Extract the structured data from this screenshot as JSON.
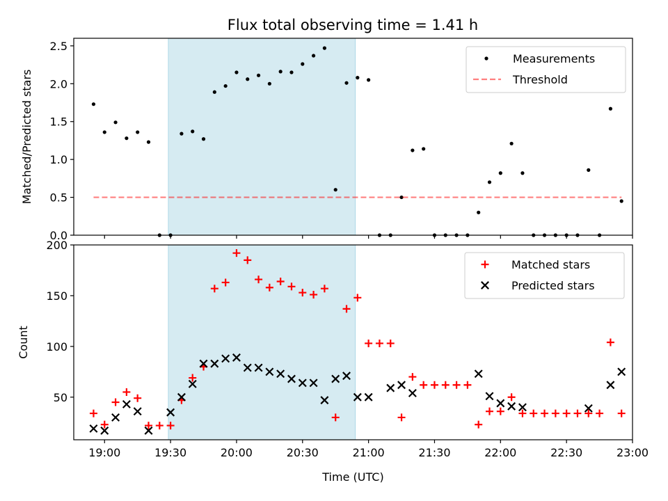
{
  "title": "Flux total observing time = 1.41 h",
  "colors": {
    "shade": "#add8e6",
    "threshold": "#ff0000",
    "matched": "#ff0000",
    "predicted": "#000000",
    "measurements": "#000000"
  },
  "chart_data": [
    {
      "type": "scatter",
      "panel": "top",
      "ylabel": "Matched/Predicted stars",
      "xlim": [
        "18:46",
        "23:00"
      ],
      "ylim": [
        0,
        2.6
      ],
      "yticks": [
        0.0,
        0.5,
        1.0,
        1.5,
        2.0,
        2.5
      ],
      "ytick_labels": [
        "0.0",
        "0.5",
        "1.0",
        "1.5",
        "2.0",
        "2.5"
      ],
      "grid": false,
      "shaded_span": {
        "start": "19:29",
        "end": "20:54"
      },
      "legend": {
        "position": "top-right",
        "entries": [
          "Measurements",
          "Threshold"
        ]
      },
      "series": [
        {
          "name": "Measurements",
          "marker": "dot",
          "x": [
            "18:55",
            "19:00",
            "19:05",
            "19:10",
            "19:15",
            "19:20",
            "19:25",
            "19:30",
            "19:35",
            "19:40",
            "19:45",
            "19:50",
            "19:55",
            "20:00",
            "20:05",
            "20:10",
            "20:15",
            "20:20",
            "20:25",
            "20:30",
            "20:35",
            "20:40",
            "20:45",
            "20:50",
            "20:55",
            "21:00",
            "21:05",
            "21:10",
            "21:15",
            "21:20",
            "21:25",
            "21:30",
            "21:35",
            "21:40",
            "21:45",
            "21:50",
            "21:55",
            "22:00",
            "22:05",
            "22:10",
            "22:15",
            "22:20",
            "22:25",
            "22:30",
            "22:35",
            "22:40",
            "22:45",
            "22:50",
            "22:55"
          ],
          "y": [
            1.73,
            1.36,
            1.49,
            1.28,
            1.36,
            1.23,
            0,
            0,
            1.34,
            1.37,
            1.27,
            1.89,
            1.97,
            2.15,
            2.06,
            2.11,
            2.0,
            2.16,
            2.15,
            2.26,
            2.37,
            2.47,
            0.6,
            2.01,
            2.08,
            2.05,
            0,
            0,
            0.5,
            1.12,
            1.14,
            0,
            0,
            0,
            0,
            0.3,
            0.7,
            0.82,
            1.21,
            0.82,
            0,
            0,
            0,
            0,
            0,
            0.86,
            0,
            1.67,
            0.45
          ]
        },
        {
          "name": "Threshold",
          "style": "dashed",
          "x": [
            "18:55",
            "22:55"
          ],
          "y": [
            0.5,
            0.5
          ]
        }
      ]
    },
    {
      "type": "scatter",
      "panel": "bottom",
      "xlabel": "Time (UTC)",
      "ylabel": "Count",
      "xlim": [
        "18:46",
        "23:00"
      ],
      "ylim": [
        8,
        200
      ],
      "yticks": [
        50,
        100,
        150,
        200
      ],
      "ytick_labels": [
        "50",
        "100",
        "150",
        "200"
      ],
      "xticks": [
        "19:00",
        "19:30",
        "20:00",
        "20:30",
        "21:00",
        "21:30",
        "22:00",
        "22:30",
        "23:00"
      ],
      "grid": false,
      "shaded_span": {
        "start": "19:29",
        "end": "20:54"
      },
      "legend": {
        "position": "top-right",
        "entries": [
          "Matched stars",
          "Predicted stars"
        ]
      },
      "series": [
        {
          "name": "Matched stars",
          "marker": "plus",
          "x": [
            "18:55",
            "19:00",
            "19:05",
            "19:10",
            "19:15",
            "19:20",
            "19:25",
            "19:30",
            "19:35",
            "19:40",
            "19:45",
            "19:50",
            "19:55",
            "20:00",
            "20:05",
            "20:10",
            "20:15",
            "20:20",
            "20:25",
            "20:30",
            "20:35",
            "20:40",
            "20:45",
            "20:50",
            "20:55",
            "21:00",
            "21:05",
            "21:10",
            "21:15",
            "21:20",
            "21:25",
            "21:30",
            "21:35",
            "21:40",
            "21:45",
            "21:50",
            "21:55",
            "22:00",
            "22:05",
            "22:10",
            "22:15",
            "22:20",
            "22:25",
            "22:30",
            "22:35",
            "22:40",
            "22:45",
            "22:50",
            "22:55"
          ],
          "y": [
            34,
            23,
            45,
            55,
            49,
            22,
            22,
            22,
            47,
            69,
            80,
            157,
            163,
            192,
            185,
            166,
            158,
            164,
            159,
            153,
            151,
            157,
            30,
            137,
            148,
            103,
            103,
            103,
            30,
            70,
            62,
            62,
            62,
            62,
            62,
            23,
            36,
            36,
            50,
            34,
            34,
            34,
            34,
            34,
            34,
            34,
            34,
            104,
            34
          ]
        },
        {
          "name": "Predicted stars",
          "marker": "x",
          "x": [
            "18:55",
            "19:00",
            "19:05",
            "19:10",
            "19:15",
            "19:20",
            "19:30",
            "19:35",
            "19:40",
            "19:45",
            "19:50",
            "19:55",
            "20:00",
            "20:05",
            "20:10",
            "20:15",
            "20:20",
            "20:25",
            "20:30",
            "20:35",
            "20:40",
            "20:45",
            "20:50",
            "20:55",
            "21:00",
            "21:10",
            "21:15",
            "21:20",
            "21:50",
            "21:55",
            "22:00",
            "22:05",
            "22:10",
            "22:40",
            "22:50",
            "22:55"
          ],
          "y": [
            19,
            17,
            30,
            43,
            36,
            17,
            35,
            50,
            63,
            83,
            83,
            88,
            89,
            79,
            79,
            75,
            73,
            68,
            64,
            64,
            47,
            68,
            71,
            50,
            50,
            59,
            62,
            54,
            73,
            51,
            44,
            41,
            40,
            39,
            62,
            75
          ]
        }
      ]
    }
  ]
}
